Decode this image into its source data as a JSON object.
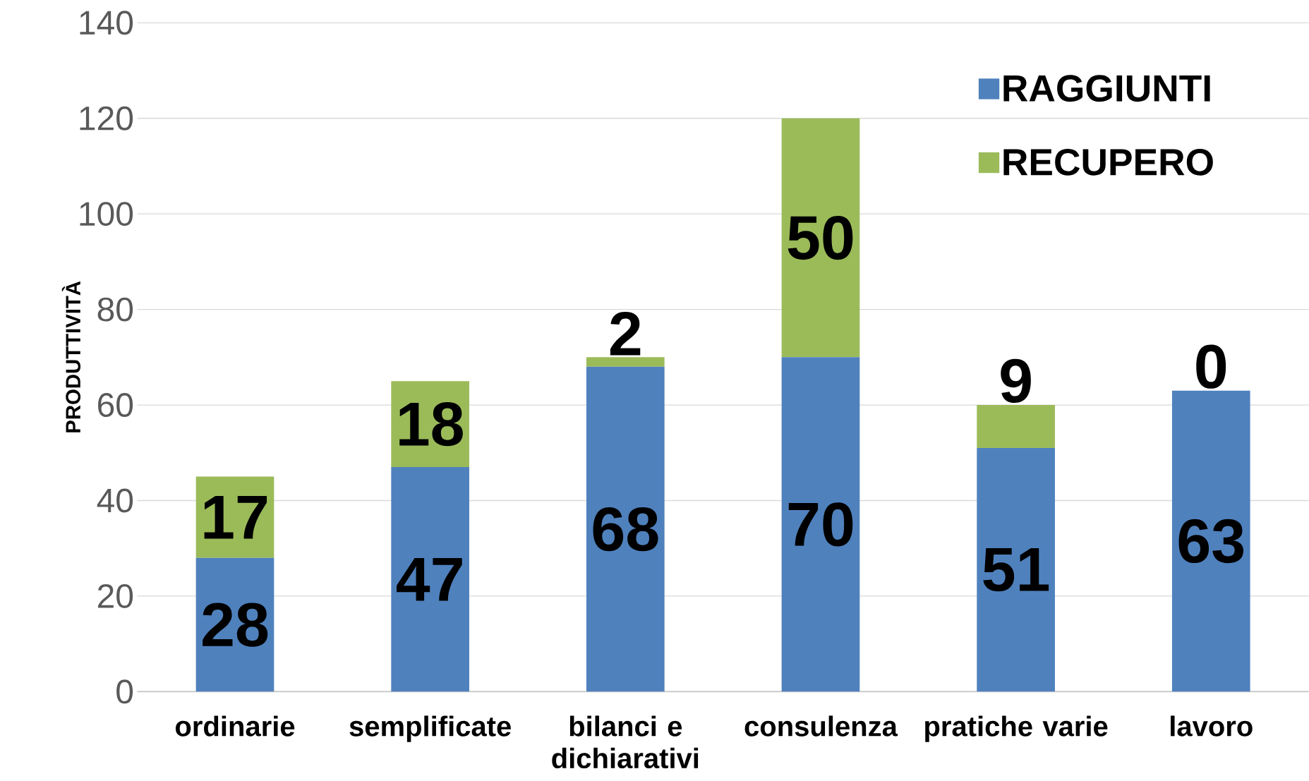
{
  "chart_data": {
    "type": "bar",
    "stacked": true,
    "ylabel": "PRODUTTIVITÀ",
    "categories": [
      "ordinarie",
      "semplificate",
      "bilanci e dichiarativi",
      "consulenza",
      "pratiche varie",
      "lavoro"
    ],
    "series": [
      {
        "name": "RAGGIUNTI",
        "color": "#4f81bd",
        "values": [
          28,
          47,
          68,
          70,
          51,
          63
        ]
      },
      {
        "name": "RECUPERO",
        "color": "#9bbb59",
        "values": [
          17,
          18,
          2,
          50,
          9,
          0
        ]
      }
    ],
    "ylim": [
      0,
      140
    ],
    "yticks": [
      0,
      20,
      40,
      60,
      80,
      100,
      120,
      140
    ],
    "grid": "y",
    "legend": "top right",
    "data_labels": true
  }
}
